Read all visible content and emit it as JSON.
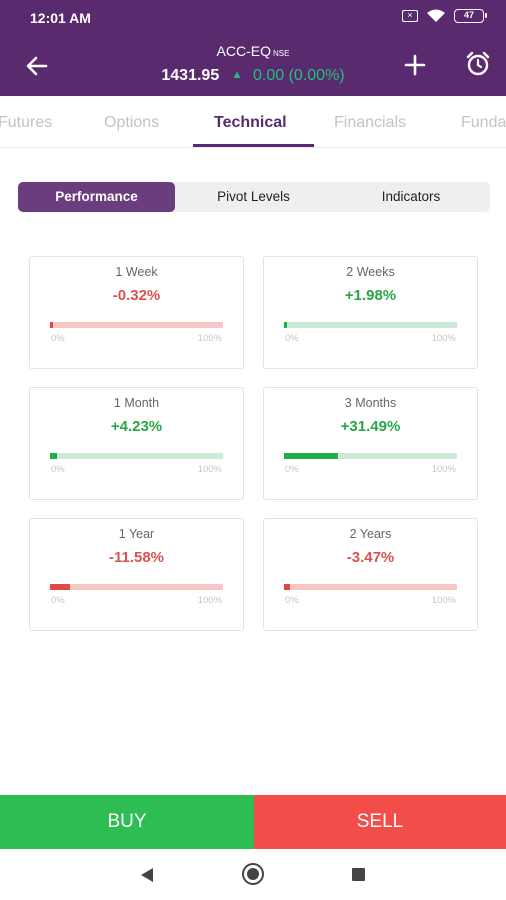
{
  "status_bar": {
    "time": "12:01 AM",
    "battery": "47",
    "icons": [
      "notification-box-icon",
      "wifi-icon",
      "battery-icon"
    ]
  },
  "header": {
    "symbol": "ACC-EQ",
    "exchange": "NSE",
    "price": "1431.95",
    "change": "0.00 (0.00%)",
    "change_direction": "up",
    "colors": {
      "background": "#5a2a6e",
      "change": "#22c07a"
    }
  },
  "tabs": [
    {
      "label": "Futures",
      "active": false
    },
    {
      "label": "Options",
      "active": false
    },
    {
      "label": "Technical",
      "active": true
    },
    {
      "label": "Financials",
      "active": false
    },
    {
      "label": "Funda",
      "active": false
    }
  ],
  "segments": [
    {
      "label": "Performance",
      "active": true
    },
    {
      "label": "Pivot Levels",
      "active": false
    },
    {
      "label": "Indicators",
      "active": false
    }
  ],
  "range_labels": {
    "min": "0%",
    "max": "100%"
  },
  "cards": [
    {
      "period": "1 Week",
      "change": "-0.32%",
      "direction": "negative",
      "fill_fraction": 0.0032
    },
    {
      "period": "2 Weeks",
      "change": "+1.98%",
      "direction": "positive",
      "fill_fraction": 0.0198
    },
    {
      "period": "1 Month",
      "change": "+4.23%",
      "direction": "positive",
      "fill_fraction": 0.0423
    },
    {
      "period": "3 Months",
      "change": "+31.49%",
      "direction": "positive",
      "fill_fraction": 0.3149
    },
    {
      "period": "1 Year",
      "change": "-11.58%",
      "direction": "negative",
      "fill_fraction": 0.1158
    },
    {
      "period": "2 Years",
      "change": "-3.47%",
      "direction": "negative",
      "fill_fraction": 0.0347
    }
  ],
  "actions": {
    "buy_label": "BUY",
    "sell_label": "SELL",
    "colors": {
      "buy": "#2ebd52",
      "sell": "#f24d49"
    }
  },
  "nav_icons": [
    "nav-back-icon",
    "nav-home-icon",
    "nav-recent-icon"
  ]
}
